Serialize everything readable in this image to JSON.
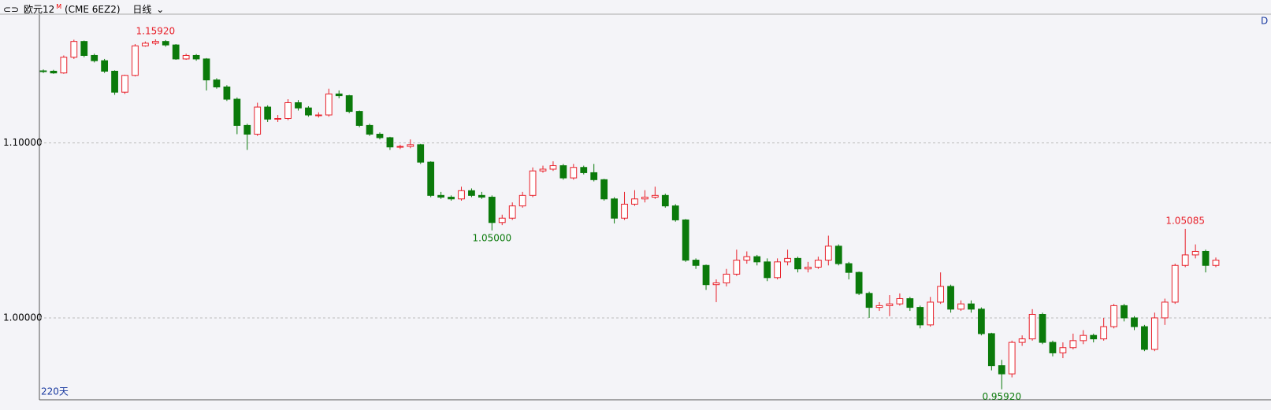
{
  "header": {
    "name": "欧元12",
    "superscript": "M",
    "code": "(CME 6EZ2)",
    "period": "日线",
    "corner": "D"
  },
  "chart_data": {
    "type": "candlestick",
    "days_label": "220天",
    "up_color": "#e8202a",
    "down_color": "#0b7a0b",
    "grid": true,
    "ylim": [
      0.9532,
      1.1736
    ],
    "yticks": [
      {
        "value": 1.0,
        "label": "1.00000"
      },
      {
        "value": 1.1,
        "label": "1.10000"
      }
    ],
    "open": [
      1.1412,
      1.141,
      1.14,
      1.149,
      1.158,
      1.15,
      1.147,
      1.141,
      1.129,
      1.1386,
      1.1555,
      1.157,
      1.158,
      1.156,
      1.148,
      1.15,
      1.148,
      1.136,
      1.132,
      1.125,
      1.11,
      1.105,
      1.1205,
      1.1136,
      1.114,
      1.123,
      1.12,
      1.116,
      1.116,
      1.128,
      1.127,
      1.118,
      1.11,
      1.105,
      1.103,
      1.0977,
      1.098,
      1.099,
      1.089,
      1.07,
      1.069,
      1.068,
      1.0727,
      1.07,
      1.069,
      1.0545,
      1.057,
      1.064,
      1.07,
      1.084,
      1.085,
      1.087,
      1.08,
      1.086,
      1.083,
      1.079,
      1.068,
      1.057,
      1.065,
      1.068,
      1.069,
      1.07,
      1.064,
      1.056,
      1.033,
      1.03,
      1.019,
      1.02,
      1.025,
      1.033,
      1.035,
      1.032,
      1.023,
      1.032,
      1.034,
      1.028,
      1.029,
      1.033,
      1.041,
      1.031,
      1.026,
      1.014,
      1.006,
      1.007,
      1.008,
      1.011,
      1.006,
      0.996,
      1.009,
      1.018,
      1.005,
      1.008,
      1.005,
      0.991,
      0.9727,
      0.968,
      0.986,
      0.988,
      1.002,
      0.986,
      0.98,
      0.983,
      0.987,
      0.99,
      0.988,
      0.995,
      1.007,
      1.0,
      0.995,
      0.982,
      1.0,
      1.009,
      1.03,
      1.036,
      1.038,
      1.03
    ],
    "high": [
      1.142,
      1.1418,
      1.15,
      1.159,
      1.1585,
      1.151,
      1.148,
      1.1415,
      1.139,
      1.1565,
      1.158,
      1.1592,
      1.1588,
      1.1565,
      1.151,
      1.1508,
      1.1485,
      1.137,
      1.133,
      1.126,
      1.111,
      1.123,
      1.1215,
      1.116,
      1.125,
      1.1245,
      1.121,
      1.1175,
      1.131,
      1.13,
      1.1275,
      1.1185,
      1.111,
      1.106,
      1.1035,
      1.099,
      1.102,
      1.0995,
      1.0895,
      1.072,
      1.07,
      1.075,
      1.074,
      1.072,
      1.07,
      1.059,
      1.066,
      1.072,
      1.086,
      1.087,
      1.0895,
      1.088,
      1.088,
      1.087,
      1.088,
      1.0795,
      1.069,
      1.072,
      1.073,
      1.073,
      1.075,
      1.071,
      1.065,
      1.0565,
      1.034,
      1.0305,
      1.022,
      1.028,
      1.039,
      1.038,
      1.036,
      1.034,
      1.034,
      1.039,
      1.035,
      1.032,
      1.035,
      1.047,
      1.042,
      1.032,
      1.0265,
      1.015,
      1.009,
      1.013,
      1.014,
      1.012,
      1.007,
      1.012,
      1.026,
      1.019,
      1.01,
      1.01,
      1.006,
      0.9915,
      0.976,
      0.987,
      0.99,
      1.005,
      1.003,
      0.987,
      0.986,
      0.991,
      0.993,
      0.991,
      1.0,
      1.008,
      1.008,
      1.001,
      0.996,
      1.003,
      1.011,
      1.031,
      1.05085,
      1.042,
      1.039,
      1.0345
    ],
    "low": [
      1.14,
      1.1395,
      1.1395,
      1.148,
      1.149,
      1.146,
      1.14,
      1.1275,
      1.128,
      1.138,
      1.155,
      1.156,
      1.155,
      1.1475,
      1.1475,
      1.147,
      1.13,
      1.131,
      1.124,
      1.105,
      1.096,
      1.104,
      1.112,
      1.112,
      1.113,
      1.1185,
      1.115,
      1.1145,
      1.115,
      1.1255,
      1.117,
      1.109,
      1.104,
      1.102,
      1.096,
      1.0965,
      1.097,
      1.088,
      1.069,
      1.068,
      1.067,
      1.067,
      1.069,
      1.068,
      1.05,
      1.053,
      1.056,
      1.063,
      1.069,
      1.083,
      1.084,
      1.079,
      1.079,
      1.082,
      1.078,
      1.067,
      1.054,
      1.056,
      1.064,
      1.066,
      1.068,
      1.063,
      1.055,
      1.032,
      1.028,
      1.016,
      1.009,
      1.018,
      1.024,
      1.031,
      1.03,
      1.021,
      1.022,
      1.03,
      1.026,
      1.026,
      1.028,
      1.03,
      1.03,
      1.022,
      1.013,
      1.0,
      1.004,
      1.001,
      1.007,
      1.004,
      0.994,
      0.995,
      1.008,
      1.003,
      1.004,
      1.003,
      0.99,
      0.97,
      0.9592,
      0.966,
      0.984,
      0.987,
      0.985,
      0.978,
      0.977,
      0.982,
      0.985,
      0.986,
      0.987,
      0.994,
      0.998,
      0.993,
      0.981,
      0.981,
      0.996,
      1.008,
      1.029,
      1.034,
      1.026,
      1.029
    ],
    "close": [
      1.141,
      1.14,
      1.149,
      1.158,
      1.15,
      1.147,
      1.141,
      1.129,
      1.1386,
      1.1555,
      1.157,
      1.158,
      1.156,
      1.148,
      1.15,
      1.148,
      1.136,
      1.132,
      1.125,
      1.11,
      1.105,
      1.1205,
      1.1136,
      1.114,
      1.123,
      1.12,
      1.116,
      1.116,
      1.128,
      1.127,
      1.118,
      1.11,
      1.105,
      1.103,
      1.0977,
      1.098,
      1.099,
      1.089,
      1.07,
      1.069,
      1.068,
      1.0727,
      1.07,
      1.069,
      1.0545,
      1.057,
      1.064,
      1.07,
      1.084,
      1.085,
      1.087,
      1.08,
      1.086,
      1.083,
      1.079,
      1.068,
      1.057,
      1.065,
      1.068,
      1.069,
      1.07,
      1.064,
      1.056,
      1.033,
      1.03,
      1.019,
      1.02,
      1.025,
      1.033,
      1.035,
      1.032,
      1.023,
      1.032,
      1.034,
      1.028,
      1.029,
      1.033,
      1.041,
      1.031,
      1.026,
      1.014,
      1.006,
      1.007,
      1.008,
      1.011,
      1.006,
      0.996,
      1.009,
      1.018,
      1.005,
      1.008,
      1.005,
      0.991,
      0.9727,
      0.968,
      0.986,
      0.988,
      1.002,
      0.986,
      0.98,
      0.983,
      0.987,
      0.99,
      0.988,
      0.995,
      1.007,
      1.0,
      0.995,
      0.982,
      1.0,
      1.009,
      1.03,
      1.036,
      1.038,
      1.03,
      1.033
    ],
    "annotations": [
      {
        "label": "1.15920",
        "value": 1.1592
      },
      {
        "label": "1.05000",
        "value": 1.05
      },
      {
        "label": "1.05085",
        "value": 1.05085
      },
      {
        "label": "0.95920",
        "value": 0.9592
      }
    ]
  }
}
